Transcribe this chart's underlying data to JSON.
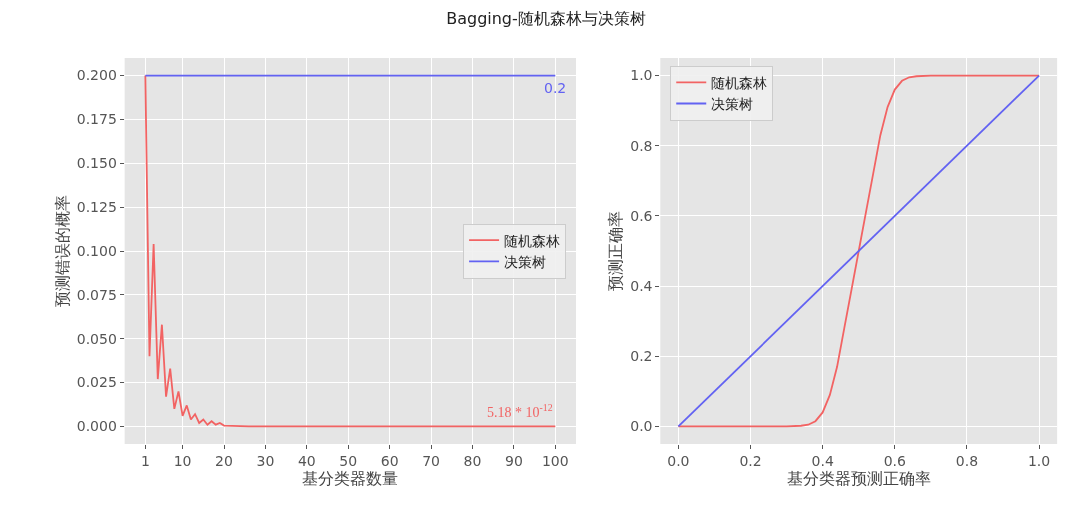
{
  "chart_data": [
    {
      "type": "line",
      "title": "Bagging-随机森林与决策树",
      "xlabel": "基分类器数量",
      "ylabel": "预测错误的概率",
      "series": [
        {
          "name": "随机森林",
          "color": "#f26363",
          "x": [
            1,
            2,
            3,
            4,
            5,
            6,
            7,
            8,
            9,
            10,
            11,
            12,
            13,
            14,
            15,
            16,
            17,
            18,
            19,
            20,
            22,
            24,
            26,
            28,
            30,
            35,
            40,
            50,
            60,
            70,
            80,
            90,
            100
          ],
          "values": [
            0.2,
            0.04,
            0.104,
            0.027,
            0.058,
            0.017,
            0.033,
            0.01,
            0.02,
            0.006,
            0.012,
            0.004,
            0.007,
            0.002,
            0.004,
            0.001,
            0.003,
            0.001,
            0.002,
            0.0005,
            0.0003,
            0.0002,
            0.0001,
            0,
            0,
            0,
            0,
            0,
            0,
            0,
            0,
            0,
            0
          ]
        },
        {
          "name": "决策树",
          "color": "#6262f2",
          "x": [
            1,
            100
          ],
          "values": [
            0.2,
            0.2
          ]
        }
      ],
      "xlim": [
        -4,
        105
      ],
      "xticks": [
        1,
        10,
        20,
        30,
        40,
        50,
        60,
        70,
        80,
        90,
        100
      ],
      "ylim": [
        -0.01,
        0.21
      ],
      "yticks": [
        {
          "value": 0,
          "label": "0.000"
        },
        {
          "value": 0.025,
          "label": "0.025"
        },
        {
          "value": 0.05,
          "label": "0.050"
        },
        {
          "value": 0.075,
          "label": "0.075"
        },
        {
          "value": 0.1,
          "label": "0.100"
        },
        {
          "value": 0.125,
          "label": "0.125"
        },
        {
          "value": 0.15,
          "label": "0.150"
        },
        {
          "value": 0.175,
          "label": "0.175"
        },
        {
          "value": 0.2,
          "label": "0.200"
        }
      ],
      "grid": true,
      "legend": "center right",
      "annotations": [
        {
          "text": "0.2",
          "x": 100,
          "y": 0.2
        },
        {
          "text": "5.18 * 10$^{-12}$",
          "x": 100,
          "y": 0
        }
      ]
    },
    {
      "type": "line",
      "xlabel": "基分类器预测正确率",
      "ylabel": "预测正确率",
      "series": [
        {
          "name": "随机森林",
          "color": "#f26363",
          "x": [
            0,
            0.2,
            0.3,
            0.34,
            0.36,
            0.38,
            0.4,
            0.42,
            0.44,
            0.46,
            0.48,
            0.5,
            0.52,
            0.54,
            0.56,
            0.58,
            0.6,
            0.62,
            0.64,
            0.66,
            0.7,
            0.8,
            1
          ],
          "values": [
            0,
            0,
            0,
            0.002,
            0.005,
            0.015,
            0.04,
            0.09,
            0.17,
            0.28,
            0.39,
            0.5,
            0.61,
            0.72,
            0.83,
            0.91,
            0.96,
            0.985,
            0.995,
            0.998,
            1,
            1,
            1
          ]
        },
        {
          "name": "决策树",
          "color": "#6262f2",
          "x": [
            0,
            1
          ],
          "values": [
            0,
            1
          ]
        }
      ],
      "xlim": [
        -0.05,
        1.05
      ],
      "xticks": [
        {
          "value": 0,
          "label": "0.0"
        },
        {
          "value": 0.2,
          "label": "0.2"
        },
        {
          "value": 0.4,
          "label": "0.4"
        },
        {
          "value": 0.6,
          "label": "0.6"
        },
        {
          "value": 0.8,
          "label": "0.8"
        },
        {
          "value": 1,
          "label": "1.0"
        }
      ],
      "ylim": [
        -0.05,
        1.05
      ],
      "yticks": [
        {
          "value": 0,
          "label": "0.0"
        },
        {
          "value": 0.2,
          "label": "0.2"
        },
        {
          "value": 0.4,
          "label": "0.4"
        },
        {
          "value": 0.6,
          "label": "0.6"
        },
        {
          "value": 0.8,
          "label": "0.8"
        },
        {
          "value": 1,
          "label": "1.0"
        }
      ],
      "grid": true,
      "legend": "top left"
    }
  ]
}
